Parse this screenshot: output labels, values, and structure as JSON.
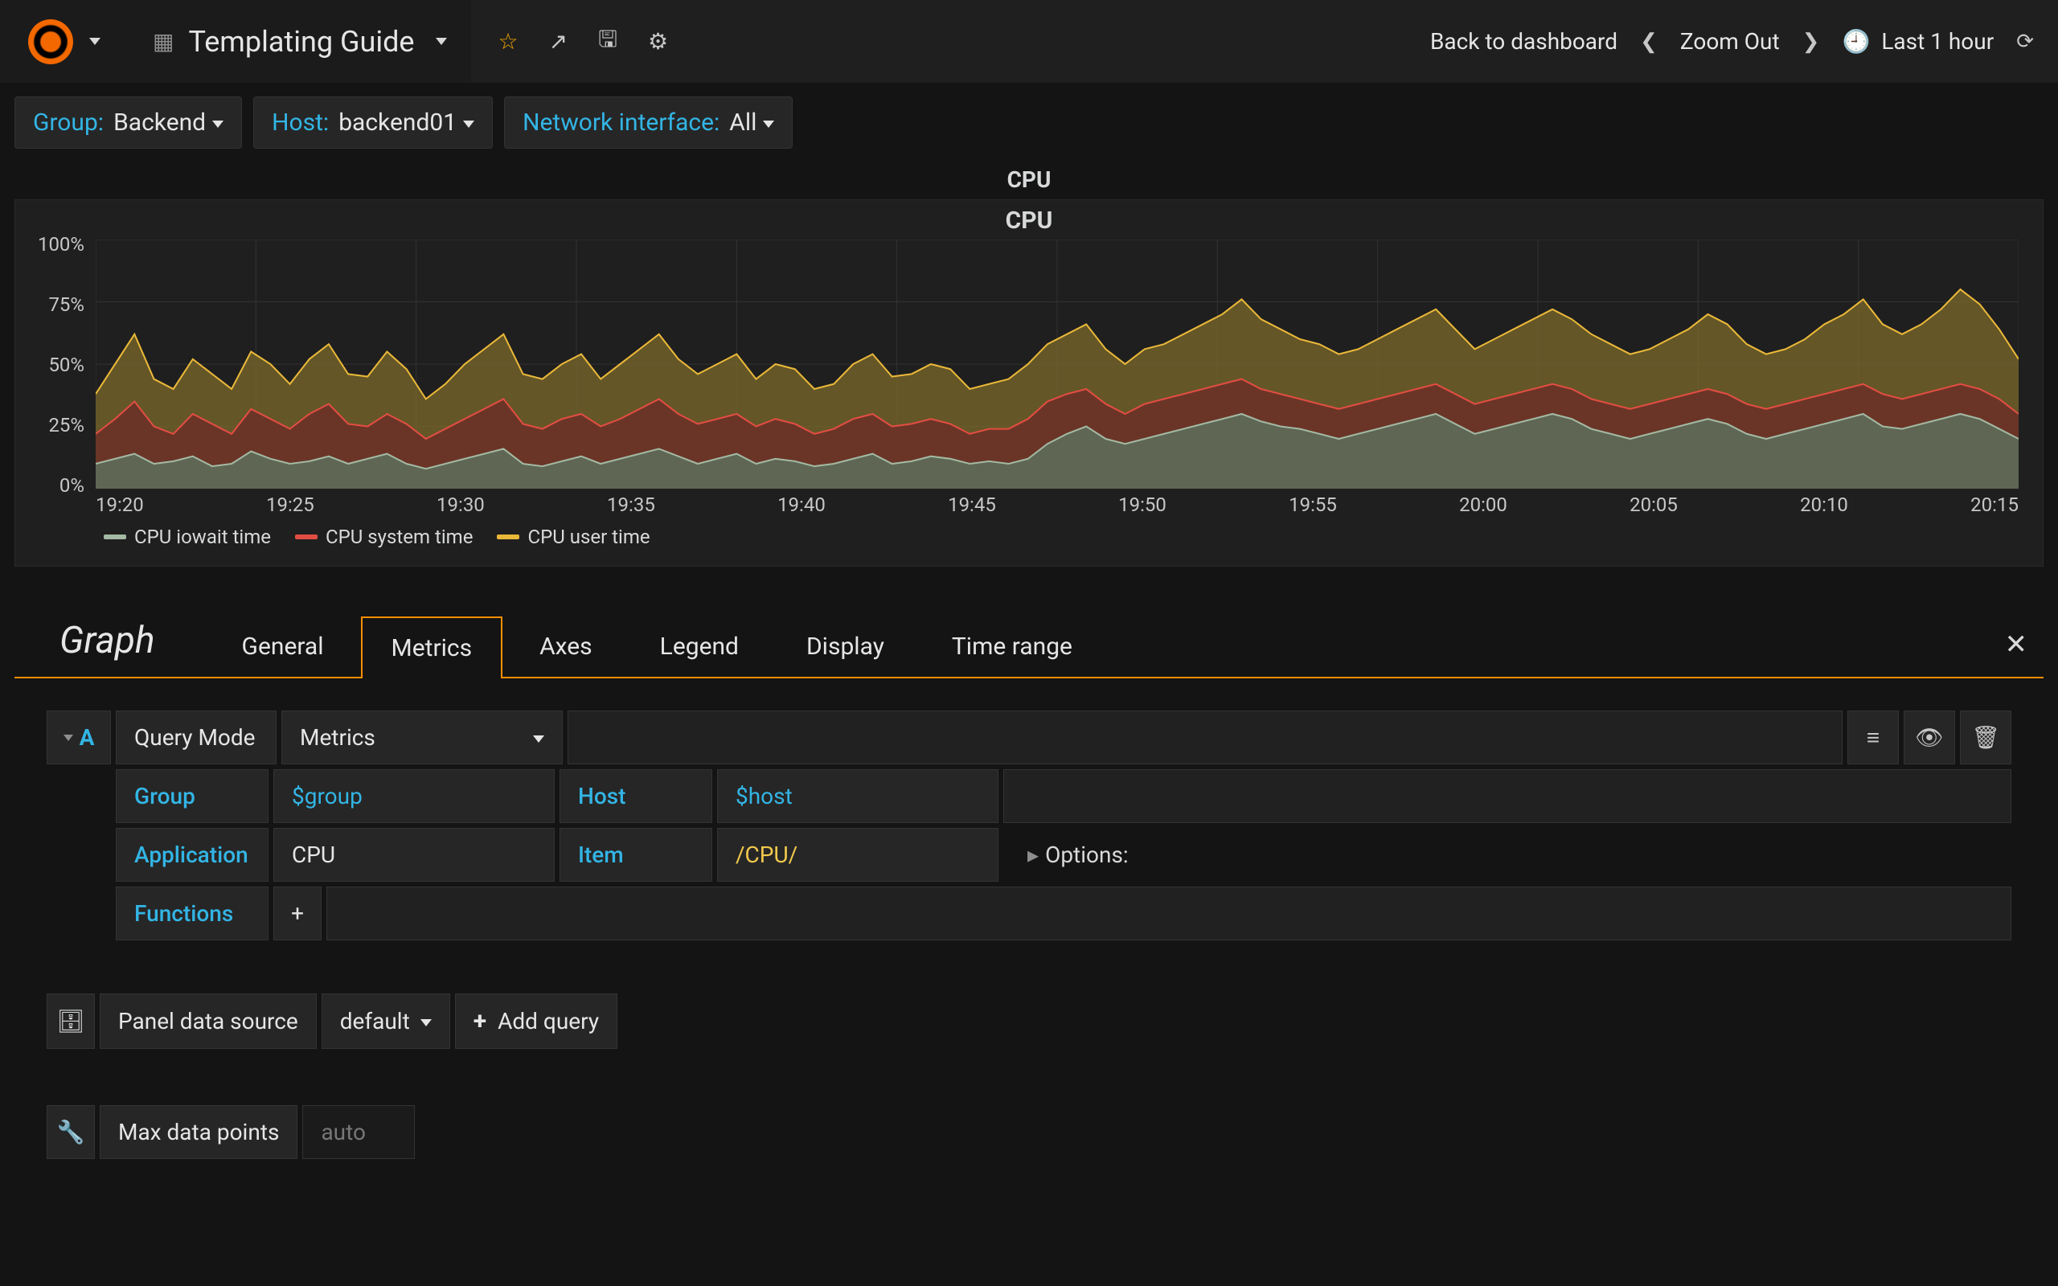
{
  "topbar": {
    "title": "Templating Guide",
    "back_label": "Back to dashboard",
    "zoom_label": "Zoom Out",
    "time_label": "Last 1 hour"
  },
  "variables": [
    {
      "label": "Group:",
      "value": "Backend"
    },
    {
      "label": "Host:",
      "value": "backend01"
    },
    {
      "label": "Network interface:",
      "value": "All"
    }
  ],
  "panel": {
    "outer_title": "CPU",
    "inner_title": "CPU",
    "chart": {
      "type": "area",
      "background_color": "#1f1f1f",
      "grid_color": "#333333",
      "ylim": [
        0,
        100
      ],
      "yticks": [
        "0%",
        "25%",
        "50%",
        "75%",
        "100%"
      ],
      "xticks": [
        "19:20",
        "19:25",
        "19:30",
        "19:35",
        "19:40",
        "19:45",
        "19:50",
        "19:55",
        "20:00",
        "20:05",
        "20:10",
        "20:15"
      ],
      "series": [
        {
          "name": "CPU iowait time",
          "stroke": "#a3b9a3",
          "fill": "#5d6f5d"
        },
        {
          "name": "CPU system time",
          "stroke": "#e24d42",
          "fill": "#6b2f28"
        },
        {
          "name": "CPU user time",
          "stroke": "#eab839",
          "fill": "#7c6a2b"
        }
      ],
      "iowait": [
        10,
        12,
        14,
        10,
        11,
        13,
        9,
        10,
        15,
        12,
        10,
        11,
        13,
        10,
        12,
        14,
        10,
        8,
        10,
        12,
        14,
        16,
        10,
        9,
        11,
        13,
        10,
        12,
        14,
        16,
        13,
        10,
        12,
        14,
        10,
        12,
        11,
        9,
        10,
        12,
        14,
        10,
        11,
        13,
        12,
        10,
        11,
        10,
        12,
        18,
        22,
        25,
        20,
        18,
        20,
        22,
        24,
        26,
        28,
        30,
        27,
        25,
        24,
        22,
        20,
        22,
        24,
        26,
        28,
        30,
        26,
        22,
        24,
        26,
        28,
        30,
        28,
        24,
        22,
        20,
        22,
        24,
        26,
        28,
        26,
        22,
        20,
        22,
        24,
        26,
        28,
        30,
        25,
        24,
        26,
        28,
        30,
        28,
        24,
        20
      ],
      "system": [
        22,
        28,
        35,
        25,
        22,
        30,
        26,
        22,
        32,
        28,
        24,
        30,
        34,
        26,
        25,
        30,
        26,
        20,
        24,
        28,
        32,
        36,
        26,
        24,
        28,
        30,
        25,
        28,
        32,
        36,
        30,
        26,
        28,
        30,
        25,
        28,
        26,
        22,
        24,
        28,
        30,
        25,
        26,
        28,
        26,
        22,
        24,
        24,
        28,
        35,
        38,
        40,
        34,
        30,
        34,
        36,
        38,
        40,
        42,
        44,
        40,
        38,
        36,
        34,
        32,
        34,
        36,
        38,
        40,
        42,
        38,
        34,
        36,
        38,
        40,
        42,
        40,
        36,
        34,
        32,
        34,
        36,
        38,
        40,
        38,
        34,
        32,
        34,
        36,
        38,
        40,
        42,
        38,
        36,
        38,
        40,
        42,
        40,
        36,
        30
      ],
      "user": [
        38,
        50,
        62,
        44,
        40,
        52,
        46,
        40,
        55,
        50,
        42,
        52,
        58,
        46,
        45,
        55,
        48,
        36,
        42,
        50,
        56,
        62,
        46,
        44,
        50,
        54,
        44,
        50,
        56,
        62,
        52,
        46,
        50,
        54,
        44,
        50,
        48,
        40,
        42,
        50,
        54,
        45,
        46,
        50,
        48,
        40,
        42,
        44,
        50,
        58,
        62,
        66,
        56,
        50,
        56,
        58,
        62,
        66,
        70,
        76,
        68,
        64,
        60,
        58,
        54,
        56,
        60,
        64,
        68,
        72,
        64,
        56,
        60,
        64,
        68,
        72,
        68,
        62,
        58,
        54,
        56,
        60,
        64,
        70,
        66,
        58,
        54,
        56,
        60,
        66,
        70,
        76,
        66,
        62,
        66,
        72,
        80,
        74,
        64,
        52
      ]
    }
  },
  "editor": {
    "heading": "Graph",
    "tabs": [
      "General",
      "Metrics",
      "Axes",
      "Legend",
      "Display",
      "Time range"
    ],
    "active_tab": "Metrics"
  },
  "query": {
    "letter": "A",
    "mode_label": "Query Mode",
    "mode_value": "Metrics",
    "group_label": "Group",
    "group_value": "$group",
    "host_label": "Host",
    "host_value": "$host",
    "app_label": "Application",
    "app_value": "CPU",
    "item_label": "Item",
    "item_value": "/CPU/",
    "options_label": "Options:",
    "functions_label": "Functions"
  },
  "footer": {
    "ds_label": "Panel data source",
    "ds_value": "default",
    "addq_label": "Add query",
    "mdp_label": "Max data points",
    "mdp_placeholder": "auto"
  },
  "colors": {
    "blue_link": "#33b5e5",
    "orange_accent": "#ff8f00"
  }
}
